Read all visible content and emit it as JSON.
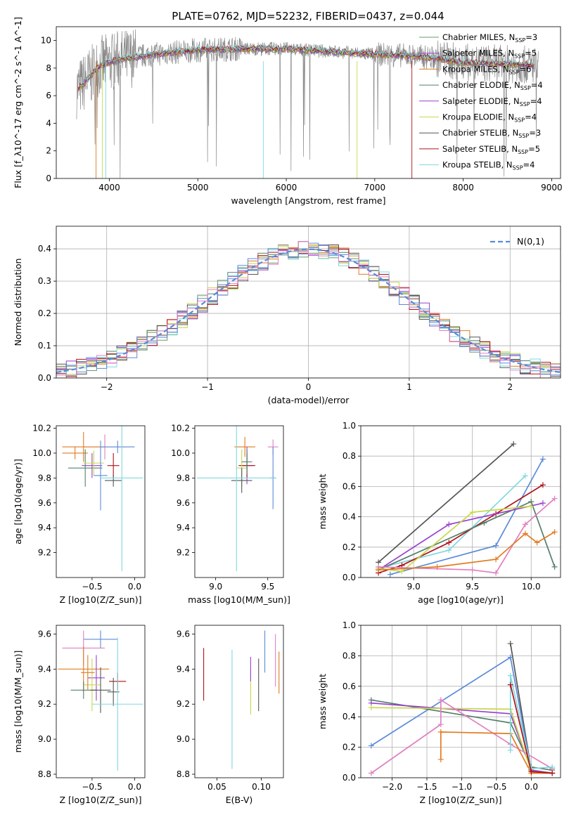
{
  "title": "PLATE=0762, MJD=52232, FIBERID=0437, z=0.044",
  "colors": [
    "#6a9a6a",
    "#9b3fcf",
    "#e07b20",
    "#55806a",
    "#9b3fcf",
    "#c8d84a",
    "#555555",
    "#b0101a",
    "#80d8e0",
    "#5b8bd8",
    "#e080c0",
    "#a0a0a0"
  ],
  "chart_data": [
    {
      "id": "spectrum",
      "type": "line",
      "xlabel": "wavelength [Angstrom, rest frame]",
      "ylabel": "Flux [f_λ10^-17 erg cm^-2 s^-1 A^-1]",
      "xlim": [
        3400,
        9100
      ],
      "ylim": [
        0,
        11
      ],
      "xticks": [
        4000,
        5000,
        6000,
        7000,
        8000,
        9000
      ],
      "yticks": [
        0,
        2,
        4,
        6,
        8,
        10
      ],
      "legend_position": "upper right",
      "series": [
        {
          "name": "Chabrier MILES, N_SSP=3",
          "color": "#6a9a6a"
        },
        {
          "name": "Salpeter MILES, N_SSP=5",
          "color": "#9b3fcf"
        },
        {
          "name": "Kroupa MILES, N_SSP=6",
          "color": "#e07b20"
        },
        {
          "name": "Chabrier ELODIE, N_SSP=4",
          "color": "#55806a"
        },
        {
          "name": "Salpeter ELODIE, N_SSP=4",
          "color": "#9b3fcf"
        },
        {
          "name": "Kroupa ELODIE, N_SSP=4",
          "color": "#c8d84a"
        },
        {
          "name": "Chabrier STELIB, N_SSP=3",
          "color": "#555555"
        },
        {
          "name": "Salpeter STELIB, N_SSP=5",
          "color": "#b0101a"
        },
        {
          "name": "Kroupa STELIB, N_SSP=4",
          "color": "#80d8e0"
        }
      ],
      "approx_continuum": {
        "x": [
          3650,
          3900,
          4100,
          4500,
          5000,
          5500,
          6000,
          6500,
          7000,
          7400,
          7700,
          8000,
          8500,
          8800
        ],
        "y": [
          6.5,
          8.2,
          8.6,
          9.0,
          9.3,
          9.4,
          9.4,
          9.2,
          9.0,
          8.9,
          8.7,
          8.4,
          8.3,
          8.2
        ]
      }
    },
    {
      "id": "residuals",
      "type": "histogram",
      "xlabel": "(data-model)/error",
      "ylabel": "Normed distribution",
      "xlim": [
        -2.5,
        2.5
      ],
      "ylim": [
        0,
        0.47
      ],
      "xticks": [
        -2,
        -1,
        0,
        1,
        2
      ],
      "yticks": [
        0.0,
        0.1,
        0.2,
        0.3,
        0.4
      ],
      "grid": true,
      "legend_label": "N(0,1)",
      "legend_position": "upper right",
      "bin_width": 0.1,
      "gaussian": {
        "mean": 0,
        "sigma": 1
      }
    },
    {
      "id": "age_vs_Z",
      "type": "errorbar",
      "xlabel": "Z [log10(Z/Z_sun)]",
      "ylabel": "age  [log10(age/yr)]",
      "xlim": [
        -0.92,
        0.12
      ],
      "ylim": [
        9.0,
        10.22
      ],
      "xticks": [
        -0.5,
        0.0
      ],
      "yticks": [
        9.2,
        9.4,
        9.6,
        9.8,
        10.0,
        10.2
      ],
      "points": [
        {
          "x": -0.35,
          "y": 10.05,
          "xerr": 0.25,
          "yerr": 0.1,
          "c": "#e080c0"
        },
        {
          "x": -0.6,
          "y": 10.05,
          "xerr": 0.25,
          "yerr": 0.12,
          "c": "#e07b20"
        },
        {
          "x": -0.2,
          "y": 10.05,
          "xerr": 0.2,
          "yerr": 0.05,
          "c": "#5b8bd8"
        },
        {
          "x": -0.5,
          "y": 9.9,
          "xerr": 0.12,
          "yerr": 0.1,
          "c": "#9b3fcf"
        },
        {
          "x": -0.7,
          "y": 10.0,
          "xerr": 0.15,
          "yerr": 0.05,
          "c": "#e07b20"
        },
        {
          "x": -0.58,
          "y": 9.88,
          "xerr": 0.2,
          "yerr": 0.15,
          "c": "#55806a"
        },
        {
          "x": -0.48,
          "y": 9.92,
          "xerr": 0.12,
          "yerr": 0.1,
          "c": "#c8d84a"
        },
        {
          "x": -0.4,
          "y": 9.82,
          "xerr": 0.08,
          "yerr": 0.28,
          "c": "#5b8bd8"
        },
        {
          "x": -0.25,
          "y": 9.9,
          "xerr": 0.07,
          "yerr": 0.1,
          "c": "#b0101a"
        },
        {
          "x": -0.25,
          "y": 9.78,
          "xerr": 0.1,
          "yerr": 0.05,
          "c": "#555555"
        },
        {
          "x": -0.15,
          "y": 9.8,
          "xerr": 0.25,
          "yerr": 0.75,
          "c": "#80d8e0"
        }
      ]
    },
    {
      "id": "age_vs_mass",
      "type": "errorbar",
      "xlabel": "mass [log10(M/M_sun)]",
      "ylabel": "",
      "xlim": [
        8.8,
        9.65
      ],
      "ylim": [
        9.0,
        10.22
      ],
      "xticks": [
        9.0,
        9.5
      ],
      "yticks": [
        9.2,
        9.4,
        9.6,
        9.8,
        10.0,
        10.2
      ],
      "points": [
        {
          "x": 9.28,
          "y": 10.05,
          "xerr": 0.1,
          "yerr": 0.08,
          "c": "#e07b20"
        },
        {
          "x": 9.55,
          "y": 10.05,
          "xerr": 0.05,
          "yerr": 0.06,
          "c": "#e080c0"
        },
        {
          "x": 9.55,
          "y": 9.8,
          "xerr": 0.03,
          "yerr": 0.25,
          "c": "#5b8bd8"
        },
        {
          "x": 9.3,
          "y": 9.9,
          "xerr": 0.06,
          "yerr": 0.15,
          "c": "#9b3fcf"
        },
        {
          "x": 9.3,
          "y": 9.9,
          "xerr": 0.08,
          "yerr": 0.1,
          "c": "#b0101a"
        },
        {
          "x": 9.25,
          "y": 9.88,
          "xerr": 0.05,
          "yerr": 0.15,
          "c": "#c8d84a"
        },
        {
          "x": 9.25,
          "y": 9.78,
          "xerr": 0.1,
          "yerr": 0.1,
          "c": "#555555"
        },
        {
          "x": 9.2,
          "y": 9.8,
          "xerr": 0.38,
          "yerr": 0.75,
          "c": "#80d8e0"
        },
        {
          "x": 9.3,
          "y": 9.93,
          "xerr": 0.05,
          "yerr": 0.1,
          "c": "#55806a"
        }
      ]
    },
    {
      "id": "massweight_vs_age",
      "type": "line",
      "xlabel": "age  [log10(age/yr)]",
      "ylabel": "mass weight",
      "xlim": [
        8.55,
        10.25
      ],
      "ylim": [
        0,
        1.0
      ],
      "xticks": [
        9.0,
        9.5,
        10.0
      ],
      "yticks": [
        0.0,
        0.2,
        0.4,
        0.6,
        0.8,
        1.0
      ],
      "grid": true,
      "series": [
        {
          "c": "#555555",
          "x": [
            8.7,
            9.85
          ],
          "y": [
            0.1,
            0.88
          ]
        },
        {
          "c": "#5b8bd8",
          "x": [
            8.8,
            9.7,
            10.1
          ],
          "y": [
            0.02,
            0.21,
            0.78
          ]
        },
        {
          "c": "#80d8e0",
          "x": [
            8.7,
            9.3,
            9.95
          ],
          "y": [
            0.06,
            0.18,
            0.67
          ]
        },
        {
          "c": "#b0101a",
          "x": [
            8.7,
            8.9,
            9.3,
            9.7,
            10.1
          ],
          "y": [
            0.03,
            0.08,
            0.23,
            0.42,
            0.61
          ]
        },
        {
          "c": "#55806a",
          "x": [
            8.7,
            9.6,
            10.0,
            10.2
          ],
          "y": [
            0.05,
            0.36,
            0.5,
            0.07
          ]
        },
        {
          "c": "#9b3fcf",
          "x": [
            8.7,
            9.3,
            10.1
          ],
          "y": [
            0.05,
            0.35,
            0.49
          ]
        },
        {
          "c": "#c8d84a",
          "x": [
            8.7,
            8.9,
            9.5,
            10.0
          ],
          "y": [
            0.06,
            0.04,
            0.43,
            0.47
          ]
        },
        {
          "c": "#e080c0",
          "x": [
            8.7,
            9.5,
            9.7,
            9.95,
            10.2
          ],
          "y": [
            0.07,
            0.05,
            0.03,
            0.35,
            0.52
          ]
        },
        {
          "c": "#e07b20",
          "x": [
            8.7,
            9.2,
            9.7,
            9.95,
            10.05,
            10.2
          ],
          "y": [
            0.05,
            0.07,
            0.12,
            0.29,
            0.23,
            0.3
          ]
        }
      ]
    },
    {
      "id": "mass_vs_Z",
      "type": "errorbar",
      "xlabel": "Z [log10(Z/Z_sun)]",
      "ylabel": "mass [log10(M/M_sun)]",
      "xlim": [
        -0.92,
        0.12
      ],
      "ylim": [
        8.78,
        9.65
      ],
      "xticks": [
        -0.5,
        0.0
      ],
      "yticks": [
        8.8,
        9.0,
        9.2,
        9.4,
        9.6
      ],
      "points": [
        {
          "x": -0.4,
          "y": 9.57,
          "xerr": 0.2,
          "yerr": 0.05,
          "c": "#5b8bd8"
        },
        {
          "x": -0.6,
          "y": 9.52,
          "xerr": 0.25,
          "yerr": 0.1,
          "c": "#e080c0"
        },
        {
          "x": -0.6,
          "y": 9.4,
          "xerr": 0.3,
          "yerr": 0.13,
          "c": "#e07b20"
        },
        {
          "x": -0.45,
          "y": 9.35,
          "xerr": 0.1,
          "yerr": 0.13,
          "c": "#9b3fcf"
        },
        {
          "x": -0.5,
          "y": 9.31,
          "xerr": 0.1,
          "yerr": 0.15,
          "c": "#c8d84a"
        },
        {
          "x": -0.6,
          "y": 9.28,
          "xerr": 0.15,
          "yerr": 0.05,
          "c": "#55806a"
        },
        {
          "x": -0.4,
          "y": 9.28,
          "xerr": 0.12,
          "yerr": 0.13,
          "c": "#555555"
        },
        {
          "x": -0.2,
          "y": 9.33,
          "xerr": 0.1,
          "yerr": 0.05,
          "c": "#b0101a"
        },
        {
          "x": -0.25,
          "y": 9.27,
          "xerr": 0.07,
          "yerr": 0.08,
          "c": "#555555"
        },
        {
          "x": -0.2,
          "y": 9.2,
          "xerr": 0.3,
          "yerr": 0.38,
          "c": "#80d8e0"
        },
        {
          "x": -0.55,
          "y": 9.38,
          "xerr": 0.08,
          "yerr": 0.1,
          "c": "#e07b20"
        }
      ]
    },
    {
      "id": "mass_vs_EBV",
      "type": "errorbar",
      "xlabel": "E(B-V)",
      "ylabel": "",
      "xlim": [
        0.025,
        0.125
      ],
      "ylim": [
        8.78,
        9.65
      ],
      "xticks": [
        0.05,
        0.1
      ],
      "yticks": [
        8.8,
        9.0,
        9.2,
        9.4,
        9.6
      ],
      "points": [
        {
          "x": 0.035,
          "y": 9.37,
          "xerr": 0,
          "yerr": 0.15,
          "c": "#b0101a"
        },
        {
          "x": 0.067,
          "y": 9.17,
          "xerr": 0,
          "yerr": 0.34,
          "c": "#80d8e0"
        },
        {
          "x": 0.088,
          "y": 9.27,
          "xerr": 0,
          "yerr": 0.13,
          "c": "#c8d84a"
        },
        {
          "x": 0.088,
          "y": 9.4,
          "xerr": 0,
          "yerr": 0.07,
          "c": "#9b3fcf"
        },
        {
          "x": 0.097,
          "y": 9.31,
          "xerr": 0,
          "yerr": 0.15,
          "c": "#555555"
        },
        {
          "x": 0.104,
          "y": 9.5,
          "xerr": 0,
          "yerr": 0.12,
          "c": "#5b8bd8"
        },
        {
          "x": 0.116,
          "y": 9.45,
          "xerr": 0,
          "yerr": 0.15,
          "c": "#e080c0"
        },
        {
          "x": 0.12,
          "y": 9.38,
          "xerr": 0,
          "yerr": 0.12,
          "c": "#e07b20"
        }
      ]
    },
    {
      "id": "massweight_vs_Z",
      "type": "line",
      "xlabel": "Z [log10(Z/Z_sun)]",
      "ylabel": "mass weight",
      "xlim": [
        -2.45,
        0.42
      ],
      "ylim": [
        0,
        1.0
      ],
      "xticks": [
        -2.0,
        -1.5,
        -1.0,
        -0.5,
        0.0
      ],
      "yticks": [
        0.0,
        0.2,
        0.4,
        0.6,
        0.8,
        1.0
      ],
      "grid": true,
      "series": [
        {
          "c": "#555555",
          "x": [
            -0.3,
            0.0,
            0.3
          ],
          "y": [
            0.88,
            0.05,
            0.03
          ]
        },
        {
          "c": "#5b8bd8",
          "x": [
            -2.3,
            -0.3,
            0.0,
            0.3
          ],
          "y": [
            0.21,
            0.79,
            0.05,
            0.03
          ]
        },
        {
          "c": "#55806a",
          "x": [
            -2.3,
            -0.3,
            0.0,
            0.3
          ],
          "y": [
            0.51,
            0.36,
            0.07,
            0.05
          ]
        },
        {
          "c": "#9b3fcf",
          "x": [
            -2.3,
            -0.3,
            0.0,
            0.3
          ],
          "y": [
            0.49,
            0.42,
            0.05,
            0.03
          ]
        },
        {
          "c": "#c8d84a",
          "x": [
            -2.3,
            -0.3,
            0.0,
            0.3
          ],
          "y": [
            0.46,
            0.45,
            0.04,
            0.03
          ]
        },
        {
          "c": "#e080c0",
          "x": [
            -2.3,
            -1.3,
            -1.3,
            -0.3,
            0.3
          ],
          "y": [
            0.03,
            0.35,
            0.51,
            0.22,
            0.06
          ]
        },
        {
          "c": "#e07b20",
          "x": [
            -1.3,
            -1.3,
            -0.3,
            0.0,
            0.3
          ],
          "y": [
            0.12,
            0.3,
            0.29,
            0.03,
            0.03
          ]
        },
        {
          "c": "#80d8e0",
          "x": [
            -0.3,
            -0.3,
            0.0,
            0.3
          ],
          "y": [
            0.18,
            0.67,
            0.06,
            0.07
          ]
        },
        {
          "c": "#b0101a",
          "x": [
            -0.3,
            0.0,
            0.3
          ],
          "y": [
            0.61,
            0.04,
            0.03
          ]
        }
      ]
    }
  ]
}
